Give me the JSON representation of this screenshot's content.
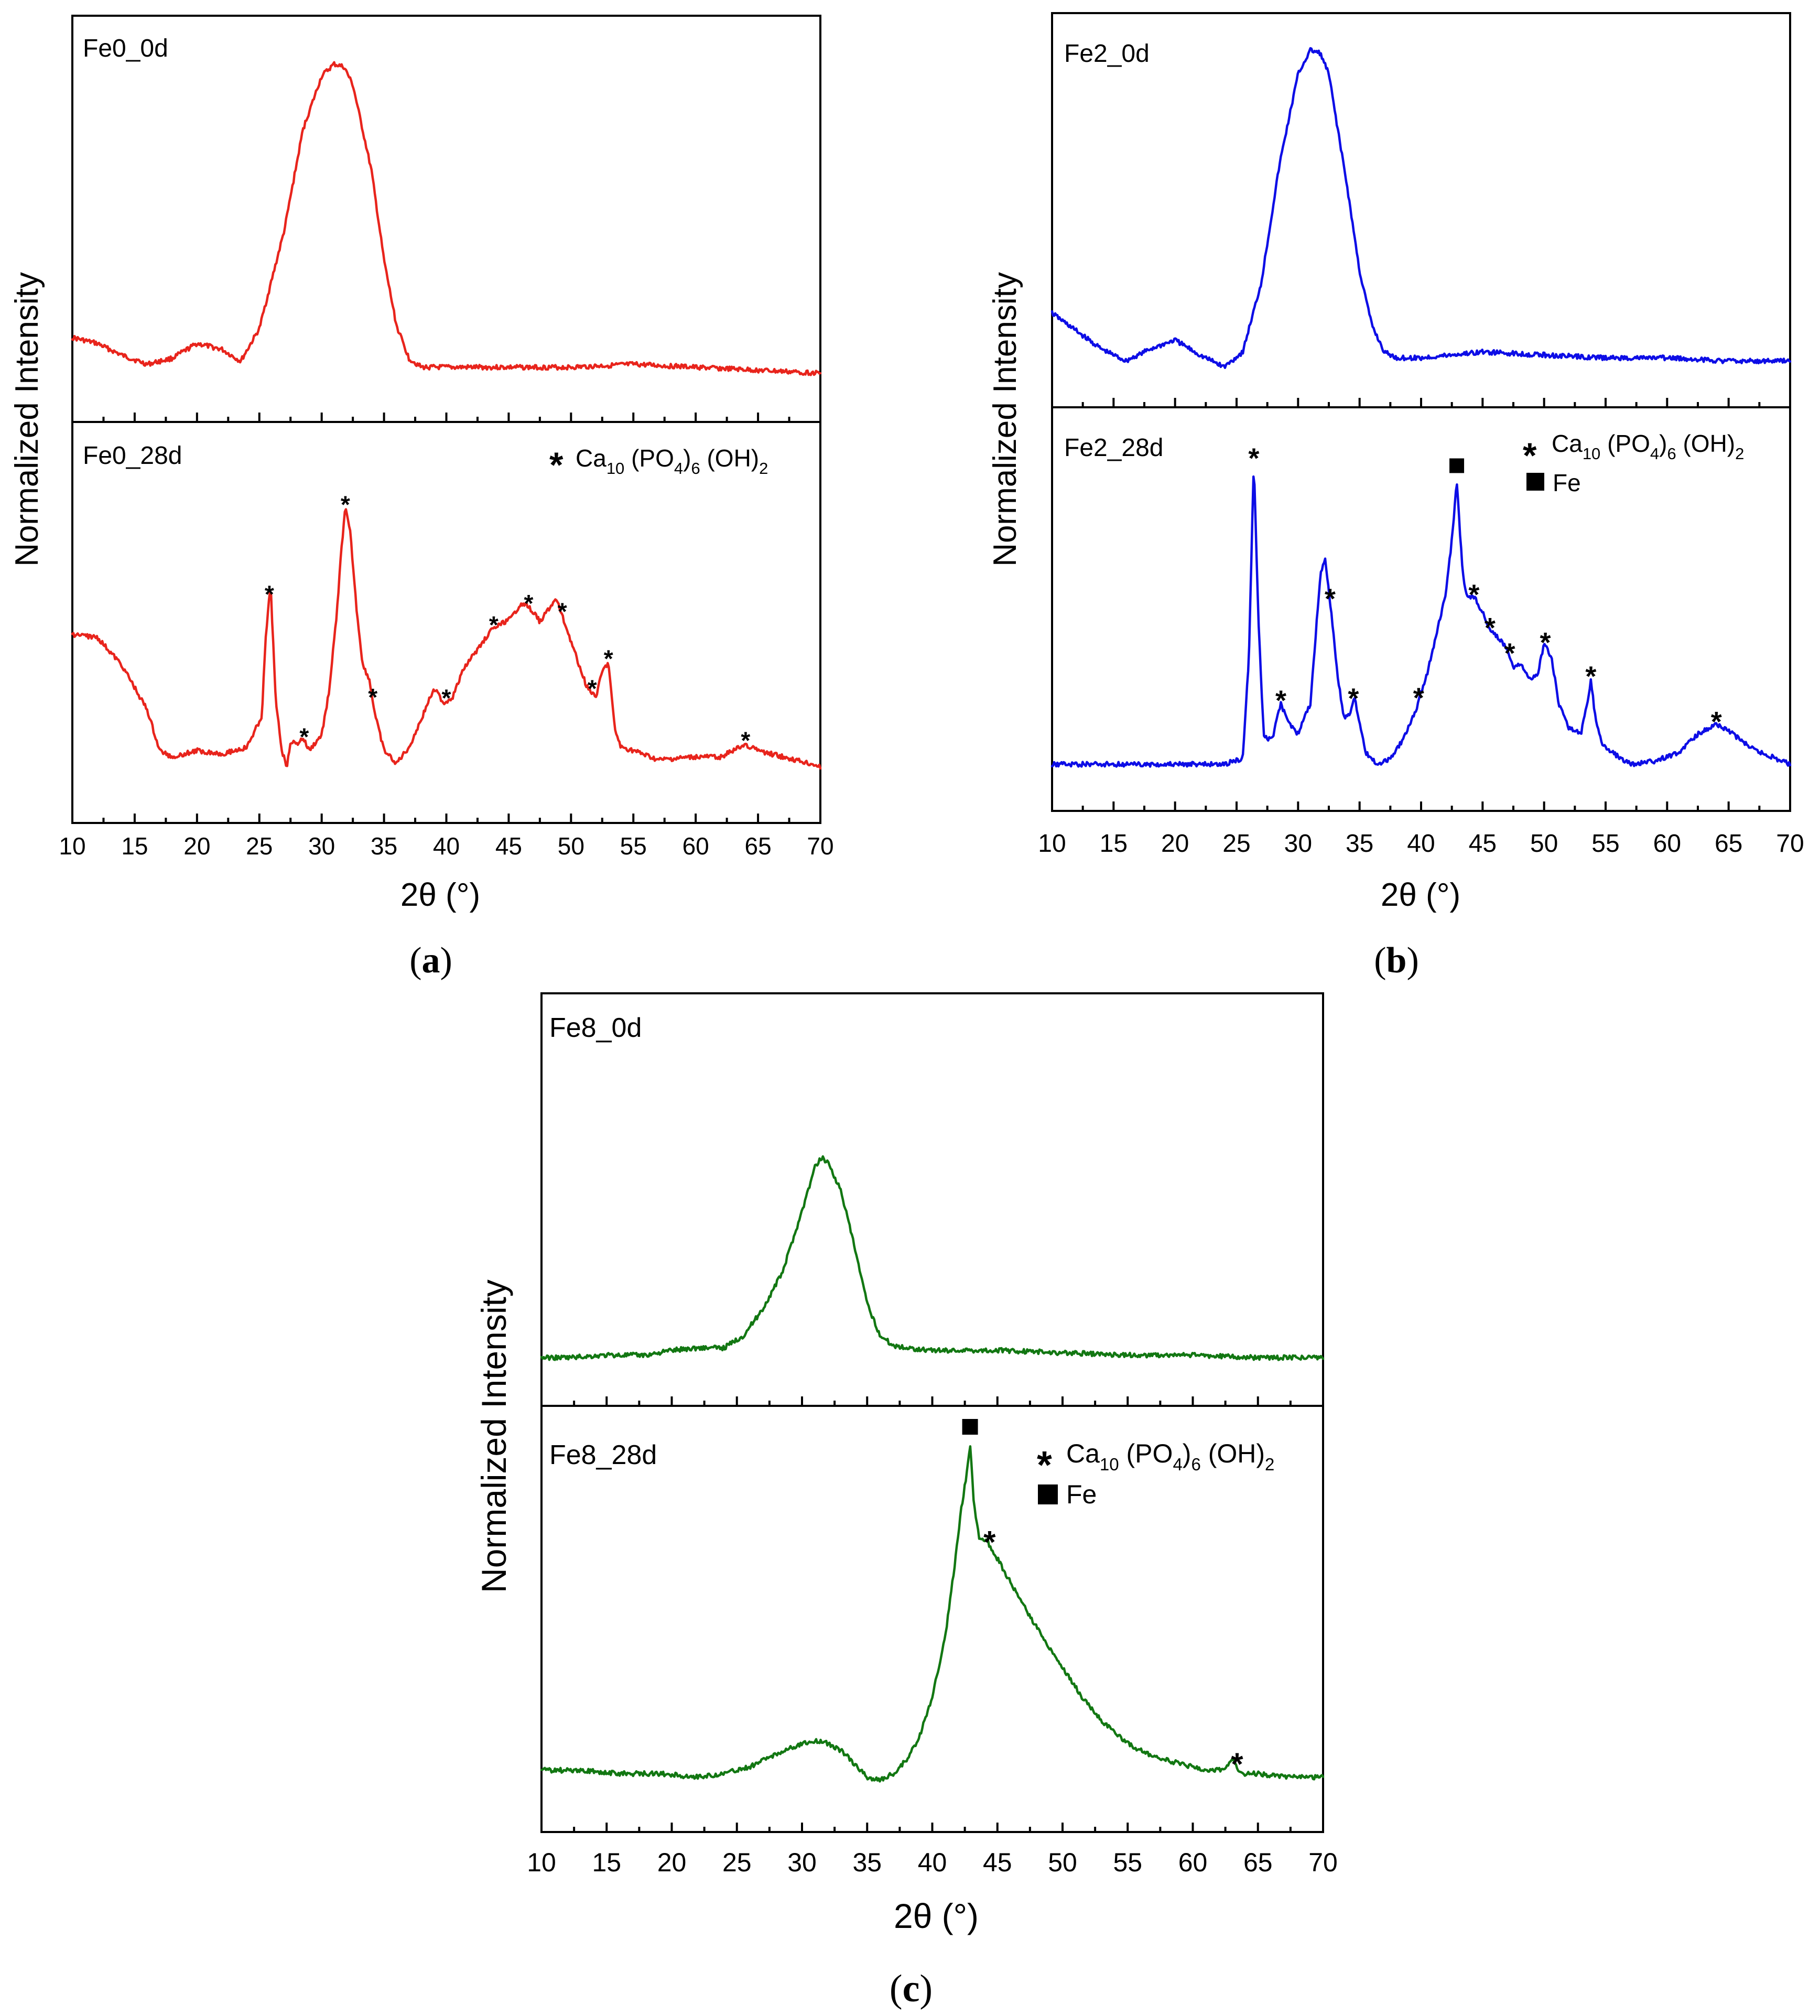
{
  "chart_data": [
    {
      "id": "a",
      "type": "line",
      "color": "#e8241c",
      "caption_letter": "a",
      "xlabel": "2θ (°)",
      "ylabel": "Normalized Intensity",
      "xlim": [
        10,
        70
      ],
      "xticks": [
        "10",
        "15",
        "20",
        "25",
        "30",
        "35",
        "40",
        "45",
        "50",
        "55",
        "60",
        "65",
        "70"
      ],
      "top_label": "Fe0_0d",
      "bottom_label": "Fe0_28d",
      "legend": {
        "star": "*",
        "formula": "Ca",
        "sub1": "10",
        "p2": " (PO",
        "sub2": "4",
        "p3": ")",
        "sub3": "6",
        "p4": " (OH)",
        "sub4": "2"
      },
      "top_series": {
        "name": "Fe0_0d",
        "x": [
          10,
          12,
          14,
          16,
          18,
          20,
          22,
          23.5,
          25,
          27,
          28.5,
          30,
          31,
          31.8,
          32.5,
          34,
          35,
          36,
          37,
          38,
          40,
          45,
          50,
          55,
          60,
          65,
          70
        ],
        "y": [
          0.12,
          0.1,
          0.06,
          0.03,
          0.05,
          0.1,
          0.08,
          0.04,
          0.15,
          0.48,
          0.82,
          1.0,
          1.04,
          1.03,
          0.97,
          0.68,
          0.38,
          0.16,
          0.05,
          0.02,
          0.02,
          0.02,
          0.02,
          0.03,
          0.02,
          0.01,
          0.0
        ]
      },
      "bottom_series": {
        "name": "Fe0_28d",
        "x": [
          10,
          12,
          14,
          16,
          17,
          18,
          20,
          22,
          24,
          25.2,
          25.5,
          25.9,
          26.3,
          26.8,
          27.2,
          27.5,
          28,
          28.5,
          29,
          30,
          30.6,
          31.2,
          31.6,
          31.9,
          32.3,
          32.8,
          33.3,
          33.8,
          34.3,
          35,
          36,
          37,
          38,
          39,
          39.8,
          40.5,
          41.5,
          42.5,
          43.5,
          44.3,
          45.2,
          46,
          46.5,
          47,
          47.5,
          48.2,
          48.8,
          49.3,
          49.8,
          50.5,
          51.2,
          52,
          52.5,
          53,
          53.5,
          54,
          55,
          57,
          60,
          62,
          63,
          64,
          65,
          67,
          70
        ],
        "y": [
          0.42,
          0.41,
          0.32,
          0.18,
          0.05,
          0.03,
          0.05,
          0.04,
          0.06,
          0.16,
          0.4,
          0.58,
          0.22,
          0.05,
          0.0,
          0.08,
          0.07,
          0.09,
          0.05,
          0.1,
          0.24,
          0.48,
          0.7,
          0.82,
          0.74,
          0.5,
          0.32,
          0.28,
          0.16,
          0.05,
          0.01,
          0.06,
          0.15,
          0.25,
          0.2,
          0.22,
          0.32,
          0.37,
          0.43,
          0.45,
          0.47,
          0.52,
          0.51,
          0.49,
          0.46,
          0.5,
          0.53,
          0.48,
          0.42,
          0.34,
          0.26,
          0.22,
          0.3,
          0.33,
          0.12,
          0.06,
          0.05,
          0.02,
          0.03,
          0.03,
          0.05,
          0.07,
          0.05,
          0.03,
          0.0
        ]
      },
      "peak_markers": [
        25.8,
        28.6,
        31.9,
        34.1,
        40.0,
        43.8,
        46.6,
        49.3,
        51.7,
        53.0,
        64.0
      ]
    },
    {
      "id": "b",
      "type": "line",
      "color": "#0d0de6",
      "caption_letter": "b",
      "xlabel": "2θ (°)",
      "ylabel": "Normalized Intensity",
      "xlim": [
        10,
        70
      ],
      "xticks": [
        "10",
        "15",
        "20",
        "25",
        "30",
        "35",
        "40",
        "45",
        "50",
        "55",
        "60",
        "65",
        "70"
      ],
      "top_label": "Fe2_0d",
      "bottom_label": "Fe2_28d",
      "legend": {
        "star": "*",
        "formula": "Ca",
        "sub1": "10",
        "p2": " (PO",
        "sub2": "4",
        "p3": ")",
        "sub3": "6",
        "p4": " (OH)",
        "sub4": "2",
        "square_label": "Fe"
      },
      "top_series": {
        "name": "Fe2_0d",
        "x": [
          10,
          12,
          14,
          16,
          18,
          20,
          22,
          24,
          25.5,
          27,
          28.5,
          30,
          31,
          31.8,
          32.5,
          34,
          35,
          36,
          37,
          38,
          40,
          45,
          50,
          55,
          60,
          65,
          70
        ],
        "y": [
          0.18,
          0.12,
          0.06,
          0.02,
          0.06,
          0.09,
          0.04,
          0.0,
          0.05,
          0.28,
          0.68,
          0.98,
          1.06,
          1.05,
          0.98,
          0.6,
          0.32,
          0.14,
          0.05,
          0.03,
          0.03,
          0.05,
          0.04,
          0.03,
          0.03,
          0.02,
          0.02
        ]
      },
      "bottom_series": {
        "name": "Fe2_28d",
        "x": [
          10,
          12,
          15,
          18,
          20,
          22,
          24,
          25.5,
          26,
          26.4,
          26.8,
          27.2,
          27.6,
          28,
          28.6,
          29.2,
          30,
          31,
          31.8,
          32.2,
          32.7,
          33.2,
          33.7,
          34.2,
          34.6,
          35,
          35.5,
          36.5,
          37.5,
          38.5,
          39.5,
          40.5,
          41.3,
          42,
          42.5,
          42.9,
          43.4,
          43.8,
          44.4,
          45,
          45.6,
          46.2,
          47,
          47.5,
          48,
          49,
          49.5,
          50,
          50.6,
          51.2,
          52,
          53,
          53.5,
          53.8,
          54.2,
          54.8,
          55.5,
          57,
          59,
          61,
          62.5,
          64,
          65,
          67,
          70
        ],
        "y": [
          0.0,
          0.0,
          0.0,
          0.0,
          0.0,
          0.0,
          0.0,
          0.02,
          0.35,
          1.0,
          0.45,
          0.1,
          0.08,
          0.1,
          0.2,
          0.14,
          0.1,
          0.2,
          0.62,
          0.68,
          0.5,
          0.3,
          0.15,
          0.17,
          0.22,
          0.14,
          0.04,
          0.0,
          0.02,
          0.08,
          0.17,
          0.3,
          0.44,
          0.56,
          0.74,
          0.93,
          0.62,
          0.55,
          0.55,
          0.5,
          0.44,
          0.42,
          0.38,
          0.32,
          0.33,
          0.28,
          0.3,
          0.4,
          0.35,
          0.2,
          0.12,
          0.1,
          0.2,
          0.28,
          0.14,
          0.06,
          0.04,
          0.0,
          0.01,
          0.04,
          0.1,
          0.13,
          0.11,
          0.05,
          0.0
        ]
      },
      "peak_markers": [
        26.4,
        28.6,
        32.6,
        34.5,
        39.8,
        44.3,
        45.6,
        47.2,
        50.1,
        53.8,
        64.0
      ],
      "square_markers": [
        42.9
      ]
    },
    {
      "id": "c",
      "type": "line",
      "color": "#127712",
      "caption_letter": "c",
      "xlabel": "2θ (°)",
      "ylabel": "Normalized Intensity",
      "xlim": [
        10,
        70
      ],
      "xticks": [
        "10",
        "15",
        "20",
        "25",
        "30",
        "35",
        "40",
        "45",
        "50",
        "55",
        "60",
        "65",
        "70"
      ],
      "top_label": "Fe8_0d",
      "bottom_label": "Fe8_28d",
      "legend": {
        "star": "*",
        "formula": "Ca",
        "sub1": "10",
        "p2": " (PO",
        "sub2": "4",
        "p3": ")",
        "sub3": "6",
        "p4": " (OH)",
        "sub4": "2",
        "square_label": "Fe"
      },
      "top_series": {
        "name": "Fe8_0d",
        "x": [
          10,
          12,
          15,
          18,
          20,
          22,
          24,
          25.5,
          27,
          28.5,
          30,
          31,
          31.5,
          32,
          33,
          34,
          35,
          36,
          37,
          38,
          40,
          45,
          50,
          55,
          60,
          65,
          70
        ],
        "y": [
          0.0,
          0.0,
          0.01,
          0.01,
          0.03,
          0.04,
          0.04,
          0.09,
          0.2,
          0.35,
          0.6,
          0.78,
          0.82,
          0.8,
          0.68,
          0.46,
          0.22,
          0.09,
          0.05,
          0.04,
          0.03,
          0.03,
          0.02,
          0.01,
          0.01,
          0.0,
          0.0
        ]
      },
      "bottom_series": {
        "name": "Fe8_28d",
        "x": [
          10,
          13,
          16,
          19,
          22,
          24,
          26,
          28,
          30,
          31.5,
          33,
          34,
          35,
          36,
          37,
          38,
          39,
          40,
          41,
          41.8,
          42.2,
          42.6,
          42.9,
          43.2,
          43.6,
          44.2,
          44.8,
          45.5,
          46.5,
          47.5,
          48.5,
          49.5,
          50.5,
          51.5,
          53,
          55,
          57,
          59,
          61,
          62.5,
          63.1,
          63.5,
          64,
          65,
          67,
          70
        ],
        "y": [
          0.02,
          0.02,
          0.01,
          0.01,
          0.0,
          0.01,
          0.03,
          0.07,
          0.1,
          0.11,
          0.08,
          0.04,
          0.0,
          -0.01,
          0.01,
          0.05,
          0.12,
          0.24,
          0.42,
          0.66,
          0.8,
          0.9,
          1.0,
          0.82,
          0.72,
          0.71,
          0.67,
          0.62,
          0.55,
          0.48,
          0.42,
          0.36,
          0.3,
          0.24,
          0.17,
          0.1,
          0.06,
          0.04,
          0.02,
          0.02,
          0.06,
          0.02,
          0.01,
          0.01,
          0.0,
          0.0
        ]
      },
      "peak_markers": [
        44.4,
        63.4
      ],
      "square_markers": [
        42.9
      ]
    }
  ]
}
